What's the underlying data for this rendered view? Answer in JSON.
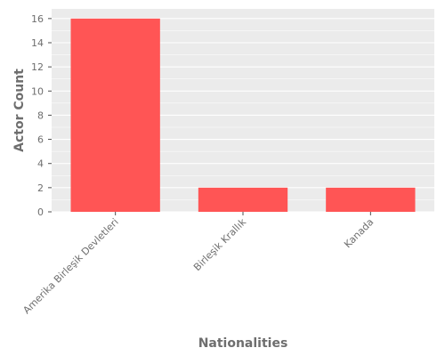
{
  "chart_data": {
    "type": "bar",
    "categories": [
      "Amerika Birleşik Devletleri",
      "Birleşik Krallık",
      "Kanada"
    ],
    "values": [
      16,
      2,
      2
    ],
    "xlabel": "Nationalities",
    "ylabel": "Actor Count",
    "ylim": [
      0,
      16.8
    ],
    "yticks": [
      0,
      2,
      4,
      6,
      8,
      10,
      12,
      14,
      16
    ],
    "grid": true,
    "legend": "none",
    "colors": {
      "bar": "#ff5555",
      "panel": "#ebebeb",
      "grid": "#ffffff",
      "text": "#6e6e6e"
    }
  }
}
